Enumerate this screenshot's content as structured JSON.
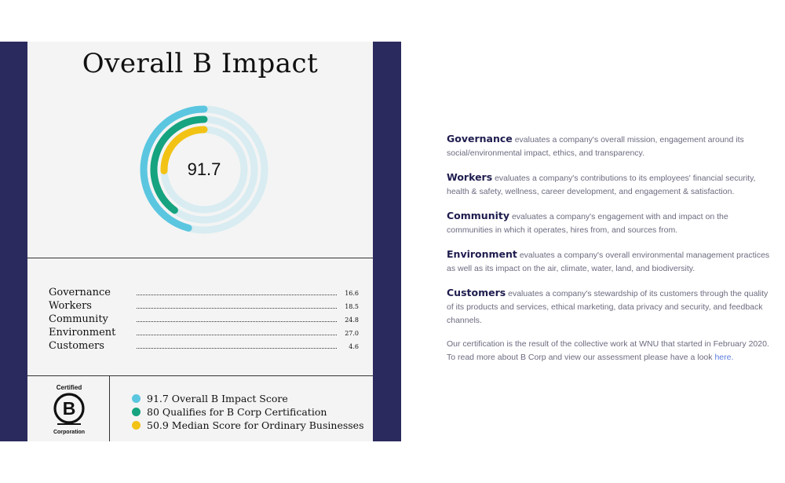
{
  "card": {
    "title": "Overall B Impact",
    "score": "91.7",
    "categories": [
      {
        "name": "Governance",
        "score": "16.6"
      },
      {
        "name": "Workers",
        "score": "18.5"
      },
      {
        "name": "Community",
        "score": "24.8"
      },
      {
        "name": "Environment",
        "score": "27.0"
      },
      {
        "name": "Customers",
        "score": "4.6"
      }
    ],
    "logo": {
      "top": "Certified",
      "letter": "B",
      "bottom": "Corporation"
    },
    "legend": [
      {
        "text": "91.7 Overall B Impact Score",
        "color": "#5bc6e0"
      },
      {
        "text": "80 Qualifies for B Corp Certification",
        "color": "#16a37f"
      },
      {
        "text": "50.9 Median Score for Ordinary Businesses",
        "color": "#f2c314"
      }
    ],
    "rings": [
      {
        "value": 91.7,
        "color": "#5bc6e0"
      },
      {
        "value": 80,
        "color": "#16a37f"
      },
      {
        "value": 50.9,
        "color": "#f2c314"
      }
    ],
    "ring_track_color": "#d8ecf1",
    "ring_max": 200
  },
  "descriptions": [
    {
      "term": "Governance",
      "text": "evaluates a company's overall mission, engagement around its social/environmental impact, ethics, and transparency."
    },
    {
      "term": "Workers",
      "text": "evaluates a company's contributions to its employees' financial security, health & safety, wellness, career development, and engagement & satisfaction."
    },
    {
      "term": "Community",
      "text": "evaluates a company's engagement with and impact on the communities in which it operates, hires from, and sources from."
    },
    {
      "term": "Environment",
      "text": "evaluates a company's overall environmental management practices as well as its impact on the air, climate, water, land, and biodiversity."
    },
    {
      "term": "Customers",
      "text": "evaluates a company's stewardship of its customers through the quality of its products and services, ethical marketing, data privacy and security, and feedback channels."
    }
  ],
  "footer_note": {
    "text": "Our certification is the result of the collective work at WNU that started in February 2020. To read more about B Corp and view our assessment please have a look",
    "link": "here."
  },
  "colors": {
    "navy": "#2b2a5e",
    "term": "#1f1d4f",
    "link": "#5b7ce0"
  }
}
